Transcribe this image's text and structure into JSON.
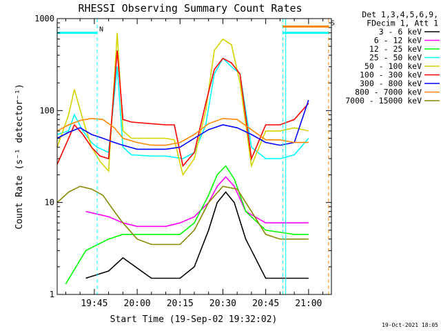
{
  "chart_data": {
    "type": "line",
    "title": "RHESSI Observing Summary Count Rates",
    "xlabel": "Start Time (19-Sep-02 19:32:02)",
    "ylabel": "Count Rate (s⁻¹ detector⁻¹)",
    "yscale": "log",
    "ylim": [
      1,
      1000
    ],
    "xlim": [
      "19:32",
      "21:08"
    ],
    "x_ticks": [
      "19:45",
      "20:00",
      "20:15",
      "20:30",
      "20:45",
      "21:00"
    ],
    "y_ticks": [
      "1",
      "10",
      "100",
      "1000"
    ],
    "legend_header": [
      "Det 1,3,4,5,6,9,",
      "FDecim 1, Att 1"
    ],
    "legend_position": "right",
    "series": [
      {
        "name": "3 - 6 keV",
        "color": "#000000",
        "x": [
          "19:42",
          "19:50",
          "19:55",
          "20:05",
          "20:15",
          "20:20",
          "20:25",
          "20:28",
          "20:31",
          "20:34",
          "20:38",
          "20:45",
          "20:55",
          "21:00"
        ],
        "values": [
          1.5,
          1.8,
          2.5,
          1.5,
          1.5,
          2,
          5,
          10,
          13,
          10,
          4,
          1.5,
          1.5,
          1.5
        ]
      },
      {
        "name": "6 - 12 keV",
        "color": "#ff00ff",
        "x": [
          "19:42",
          "19:50",
          "19:55",
          "20:00",
          "20:10",
          "20:15",
          "20:20",
          "20:25",
          "20:28",
          "20:31",
          "20:34",
          "20:38",
          "20:45",
          "20:55",
          "21:00"
        ],
        "values": [
          8,
          7,
          6,
          5.5,
          5.5,
          6,
          7,
          10,
          15,
          19,
          15,
          8,
          6,
          6,
          6
        ]
      },
      {
        "name": "12 - 25 keV",
        "color": "#00ff00",
        "x": [
          "19:35",
          "19:42",
          "19:50",
          "19:55",
          "20:05",
          "20:15",
          "20:20",
          "20:25",
          "20:28",
          "20:31",
          "20:34",
          "20:38",
          "20:45",
          "20:55",
          "21:00"
        ],
        "values": [
          1.3,
          3,
          4,
          4.5,
          4.5,
          4.5,
          6,
          12,
          20,
          25,
          18,
          8,
          5,
          4.5,
          4.5
        ]
      },
      {
        "name": "25 - 50 keV",
        "color": "#00ffff",
        "x": [
          "19:32",
          "19:36",
          "19:38",
          "19:41",
          "19:44",
          "19:46",
          "19:50",
          "19:53",
          "19:55",
          "19:58",
          "20:05",
          "20:10",
          "20:13",
          "20:16",
          "20:20",
          "20:24",
          "20:27",
          "20:30",
          "20:33",
          "20:36",
          "20:40",
          "20:45",
          "20:50",
          "20:55",
          "21:00"
        ],
        "values": [
          55,
          60,
          90,
          60,
          45,
          40,
          35,
          300,
          40,
          33,
          32,
          32,
          31,
          30,
          35,
          70,
          250,
          370,
          300,
          250,
          40,
          30,
          30,
          33,
          50
        ]
      },
      {
        "name": "50 - 100 keV",
        "color": "#d4d400",
        "x": [
          "19:32",
          "19:36",
          "19:38",
          "19:41",
          "19:44",
          "19:47",
          "19:50",
          "19:53",
          "19:55",
          "19:58",
          "20:05",
          "20:10",
          "20:13",
          "20:16",
          "20:20",
          "20:24",
          "20:27",
          "20:30",
          "20:33",
          "20:36",
          "20:40",
          "20:45",
          "20:50",
          "20:55",
          "21:00"
        ],
        "values": [
          40,
          90,
          170,
          80,
          40,
          28,
          22,
          700,
          60,
          50,
          50,
          50,
          48,
          20,
          30,
          100,
          450,
          600,
          520,
          200,
          25,
          60,
          60,
          65,
          60
        ]
      },
      {
        "name": "100 - 300 keV",
        "color": "#ff0000",
        "x": [
          "19:32",
          "19:36",
          "19:38",
          "19:41",
          "19:44",
          "19:47",
          "19:50",
          "19:53",
          "19:55",
          "19:58",
          "20:05",
          "20:10",
          "20:13",
          "20:16",
          "20:20",
          "20:24",
          "20:27",
          "20:30",
          "20:33",
          "20:36",
          "20:40",
          "20:45",
          "20:50",
          "20:55",
          "21:00"
        ],
        "values": [
          26,
          50,
          70,
          55,
          40,
          32,
          30,
          450,
          80,
          75,
          72,
          70,
          70,
          25,
          35,
          120,
          280,
          370,
          330,
          250,
          30,
          70,
          70,
          80,
          120
        ]
      },
      {
        "name": "300 - 800 keV",
        "color": "#0000ff",
        "x": [
          "19:32",
          "19:36",
          "19:40",
          "19:44",
          "19:48",
          "19:52",
          "19:55",
          "20:00",
          "20:05",
          "20:10",
          "20:15",
          "20:20",
          "20:25",
          "20:30",
          "20:35",
          "20:40",
          "20:45",
          "20:50",
          "20:55",
          "21:00"
        ],
        "values": [
          50,
          58,
          65,
          55,
          50,
          45,
          42,
          38,
          38,
          38,
          40,
          50,
          62,
          70,
          65,
          55,
          45,
          42,
          45,
          130
        ]
      },
      {
        "name": "800 - 7000 keV",
        "color": "#ff8800",
        "x": [
          "19:32",
          "19:36",
          "19:40",
          "19:44",
          "19:48",
          "19:52",
          "19:55",
          "20:00",
          "20:05",
          "20:10",
          "20:15",
          "20:20",
          "20:25",
          "20:30",
          "20:35",
          "20:40",
          "20:45",
          "20:50",
          "20:55",
          "21:00"
        ],
        "values": [
          60,
          70,
          78,
          82,
          80,
          65,
          50,
          45,
          42,
          42,
          45,
          55,
          72,
          82,
          80,
          62,
          48,
          48,
          45,
          45
        ]
      },
      {
        "name": "7000 - 15000 keV",
        "color": "#888800",
        "x": [
          "19:32",
          "19:36",
          "19:40",
          "19:44",
          "19:48",
          "19:52",
          "19:55",
          "20:00",
          "20:05",
          "20:10",
          "20:15",
          "20:20",
          "20:25",
          "20:30",
          "20:35",
          "20:40",
          "20:45",
          "20:50",
          "20:55",
          "21:00"
        ],
        "values": [
          10,
          13,
          15,
          14,
          12,
          8,
          6,
          4,
          3.5,
          3.5,
          3.5,
          5,
          10,
          15,
          14,
          8,
          4.5,
          4,
          4,
          4
        ]
      }
    ],
    "markers": [
      {
        "label": "N",
        "color": "#00ffff",
        "x_start": "19:32",
        "x_end": "19:46",
        "level": 700
      },
      {
        "label": "S",
        "color": "#ff8800",
        "x_start": "20:51",
        "x_end": "21:07",
        "level": 820
      },
      {
        "label": "",
        "color": "#00ffff",
        "x_start": "20:51",
        "x_end": "21:07",
        "level": 700
      }
    ],
    "vertical_lines": [
      {
        "x": "19:46",
        "color": "#00ffff",
        "style": "dashed"
      },
      {
        "x": "20:51",
        "color": "#00ffff",
        "style": "dashed"
      },
      {
        "x": "20:52",
        "color": "#00ffff",
        "style": "solid"
      },
      {
        "x": "21:07",
        "color": "#ff8800",
        "style": "dashed"
      }
    ],
    "footer": "19-Oct-2021 18:05",
    "grid": false
  }
}
